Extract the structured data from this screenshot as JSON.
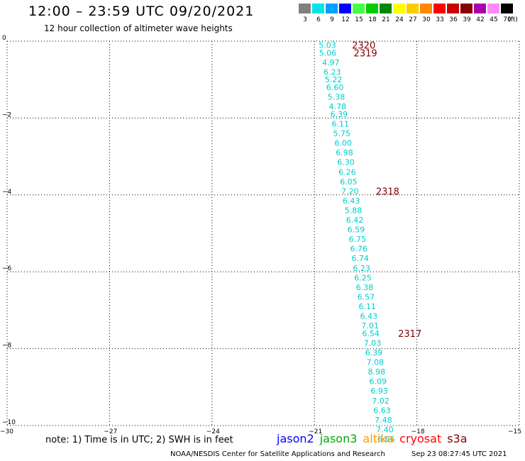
{
  "header": {
    "title": "12:00 – 23:59 UTC 09/20/2021",
    "subtitle": "12 hour collection of altimeter wave heights"
  },
  "color_scale": {
    "unit_label": "(ft)",
    "bins": [
      {
        "label": "3",
        "color": "#7f7f7f"
      },
      {
        "label": "6",
        "color": "#00e5e5"
      },
      {
        "label": "9",
        "color": "#00a0ff"
      },
      {
        "label": "12",
        "color": "#0000ff"
      },
      {
        "label": "15",
        "color": "#44ff44"
      },
      {
        "label": "18",
        "color": "#00cc00"
      },
      {
        "label": "21",
        "color": "#008800"
      },
      {
        "label": "24",
        "color": "#ffff00"
      },
      {
        "label": "27",
        "color": "#ffcc00"
      },
      {
        "label": "30",
        "color": "#ff8800"
      },
      {
        "label": "33",
        "color": "#ff0000"
      },
      {
        "label": "36",
        "color": "#cc0000"
      },
      {
        "label": "39",
        "color": "#880000"
      },
      {
        "label": "42",
        "color": "#aa00aa"
      },
      {
        "label": "45",
        "color": "#ff88ff"
      },
      {
        "label": "70",
        "color": "#000000"
      }
    ]
  },
  "map": {
    "lon_range": [
      -30,
      -15
    ],
    "lat_range": [
      -10,
      0
    ],
    "lon_ticks": [
      "−30",
      "−27",
      "−24",
      "−21",
      "−18",
      "−15"
    ],
    "lat_ticks": [
      "0",
      "−2",
      "−4",
      "−6",
      "−8",
      "−10"
    ],
    "grid": "dotted",
    "wave_color": "#00cccc",
    "time_color": "#800000",
    "wave_points": [
      {
        "lat": -0.1,
        "lon": -20.62,
        "swh": "5.03"
      },
      {
        "lat": -0.3,
        "lon": -20.61,
        "swh": "5.06"
      },
      {
        "lat": -0.55,
        "lon": -20.52,
        "swh": "4.97"
      },
      {
        "lat": -0.8,
        "lon": -20.48,
        "swh": "6.23"
      },
      {
        "lat": -1.0,
        "lon": -20.44,
        "swh": "5.22"
      },
      {
        "lat": -1.2,
        "lon": -20.4,
        "swh": "6.60"
      },
      {
        "lat": -1.45,
        "lon": -20.36,
        "swh": "5.38"
      },
      {
        "lat": -1.7,
        "lon": -20.32,
        "swh": "4.78"
      },
      {
        "lat": -1.9,
        "lon": -20.28,
        "swh": "6.39"
      },
      {
        "lat": -2.15,
        "lon": -20.24,
        "swh": "6.11"
      },
      {
        "lat": -2.4,
        "lon": -20.2,
        "swh": "5.75"
      },
      {
        "lat": -2.65,
        "lon": -20.16,
        "swh": "6.00"
      },
      {
        "lat": -2.9,
        "lon": -20.12,
        "swh": "6.98"
      },
      {
        "lat": -3.15,
        "lon": -20.08,
        "swh": "6.30"
      },
      {
        "lat": -3.4,
        "lon": -20.04,
        "swh": "6.26"
      },
      {
        "lat": -3.65,
        "lon": -20.0,
        "swh": "6.05"
      },
      {
        "lat": -3.9,
        "lon": -19.96,
        "swh": "7.20"
      },
      {
        "lat": -4.15,
        "lon": -19.92,
        "swh": "6.43"
      },
      {
        "lat": -4.4,
        "lon": -19.86,
        "swh": "5.88"
      },
      {
        "lat": -4.65,
        "lon": -19.82,
        "swh": "6.42"
      },
      {
        "lat": -4.9,
        "lon": -19.78,
        "swh": "6.59"
      },
      {
        "lat": -5.15,
        "lon": -19.74,
        "swh": "6.75"
      },
      {
        "lat": -5.4,
        "lon": -19.7,
        "swh": "6.76"
      },
      {
        "lat": -5.65,
        "lon": -19.66,
        "swh": "6.74"
      },
      {
        "lat": -5.9,
        "lon": -19.62,
        "swh": "6.23"
      },
      {
        "lat": -6.15,
        "lon": -19.58,
        "swh": "6.25"
      },
      {
        "lat": -6.4,
        "lon": -19.53,
        "swh": "6.38"
      },
      {
        "lat": -6.65,
        "lon": -19.49,
        "swh": "6.57"
      },
      {
        "lat": -6.9,
        "lon": -19.45,
        "swh": "6.11"
      },
      {
        "lat": -7.15,
        "lon": -19.41,
        "swh": "6.43"
      },
      {
        "lat": -7.4,
        "lon": -19.37,
        "swh": "7.01"
      },
      {
        "lat": -7.6,
        "lon": -19.35,
        "swh": "6.54"
      },
      {
        "lat": -7.85,
        "lon": -19.3,
        "swh": "7.03"
      },
      {
        "lat": -8.1,
        "lon": -19.26,
        "swh": "6.39"
      },
      {
        "lat": -8.35,
        "lon": -19.22,
        "swh": "7.08"
      },
      {
        "lat": -8.6,
        "lon": -19.18,
        "swh": "8.98"
      },
      {
        "lat": -8.85,
        "lon": -19.14,
        "swh": "6.09"
      },
      {
        "lat": -9.1,
        "lon": -19.1,
        "swh": "6.93"
      },
      {
        "lat": -9.35,
        "lon": -19.06,
        "swh": "7.02"
      },
      {
        "lat": -9.6,
        "lon": -19.02,
        "swh": "6.63"
      },
      {
        "lat": -9.85,
        "lon": -18.98,
        "swh": "7.48"
      },
      {
        "lat": -10.1,
        "lon": -18.94,
        "swh": "7.40"
      },
      {
        "lat": -10.35,
        "lon": -18.9,
        "swh": "6.66"
      }
    ],
    "time_labels": [
      {
        "lat": -0.1,
        "lon": -19.9,
        "text": "2320"
      },
      {
        "lat": -0.3,
        "lon": -19.85,
        "text": "2319"
      },
      {
        "lat": -3.9,
        "lon": -19.2,
        "text": "2318"
      },
      {
        "lat": -7.6,
        "lon": -18.55,
        "text": "2317"
      }
    ]
  },
  "footer": {
    "note": "note: 1) Time is in UTC; 2) SWH is in feet",
    "satellites": [
      {
        "name": "jason2",
        "color": "#0000ff"
      },
      {
        "name": "jason3",
        "color": "#00aa00"
      },
      {
        "name": "altika",
        "color": "#ff9900"
      },
      {
        "name": "cryosat",
        "color": "#ff0000"
      },
      {
        "name": "s3a",
        "color": "#800000"
      }
    ],
    "credit": "NOAA/NESDIS Center for Satellite Applications and Research",
    "timestamp": "Sep 23 08:27:45 UTC 2021"
  }
}
